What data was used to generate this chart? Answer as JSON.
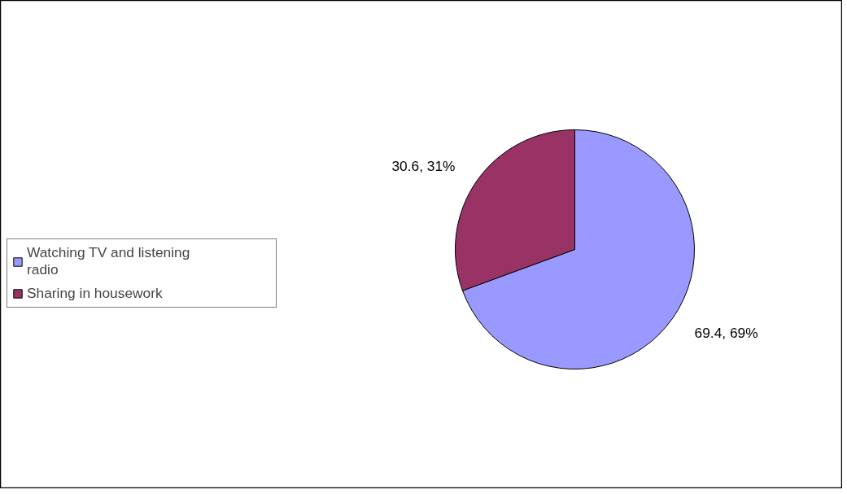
{
  "chart_data": {
    "type": "pie",
    "categories": [
      "Watching TV and listening radio",
      "Sharing in housework"
    ],
    "values": [
      69.4,
      30.6
    ],
    "colors": [
      "#9999ff",
      "#993366"
    ],
    "value_labels": [
      "69.4, 69%",
      "30.6, 31%"
    ],
    "legend": "left"
  }
}
